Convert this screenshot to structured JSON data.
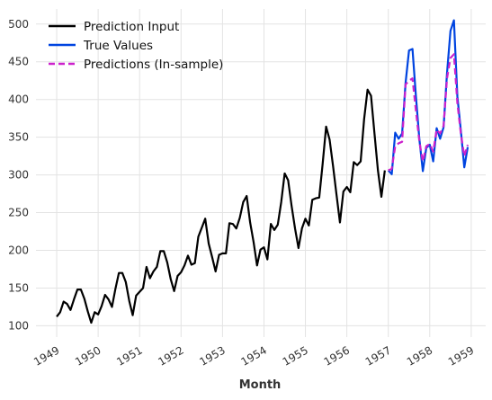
{
  "chart_data": {
    "type": "line",
    "xlabel": "Month",
    "ylabel": "",
    "x_unit": "decimal-year",
    "xlim": [
      1948.5,
      1959.35
    ],
    "ylim": [
      85,
      520
    ],
    "xticks": [
      {
        "value": 1949,
        "label": "1949"
      },
      {
        "value": 1950,
        "label": "1950"
      },
      {
        "value": 1951,
        "label": "1951"
      },
      {
        "value": 1952,
        "label": "1952"
      },
      {
        "value": 1953,
        "label": "1953"
      },
      {
        "value": 1954,
        "label": "1954"
      },
      {
        "value": 1955,
        "label": "1955"
      },
      {
        "value": 1956,
        "label": "1956"
      },
      {
        "value": 1957,
        "label": "1957"
      },
      {
        "value": 1958,
        "label": "1958"
      },
      {
        "value": 1959,
        "label": "1959"
      }
    ],
    "yticks": [
      {
        "value": 100,
        "label": "100"
      },
      {
        "value": 150,
        "label": "150"
      },
      {
        "value": 200,
        "label": "200"
      },
      {
        "value": 250,
        "label": "250"
      },
      {
        "value": 300,
        "label": "300"
      },
      {
        "value": 350,
        "label": "350"
      },
      {
        "value": 400,
        "label": "400"
      },
      {
        "value": 450,
        "label": "450"
      },
      {
        "value": 500,
        "label": "500"
      }
    ],
    "grid": true,
    "legend_position": "top-left",
    "series": [
      {
        "name": "Prediction Input",
        "color": "#000000",
        "dash": "solid",
        "x_start": 1949,
        "values": [
          112,
          118,
          132,
          129,
          121,
          135,
          148,
          148,
          136,
          119,
          104,
          118,
          115,
          126,
          141,
          135,
          125,
          149,
          170,
          170,
          158,
          133,
          114,
          140,
          145,
          150,
          178,
          163,
          172,
          178,
          199,
          199,
          184,
          162,
          146,
          166,
          171,
          180,
          193,
          181,
          183,
          218,
          230,
          242,
          209,
          191,
          172,
          194,
          196,
          196,
          236,
          235,
          229,
          243,
          264,
          272,
          237,
          211,
          180,
          201,
          204,
          188,
          235,
          227,
          234,
          264,
          302,
          293,
          259,
          229,
          203,
          229,
          242,
          233,
          267,
          269,
          270,
          315,
          364,
          347,
          312,
          274,
          237,
          278,
          284,
          277,
          317,
          313,
          318,
          374,
          413,
          405,
          355,
          306,
          271,
          306
        ]
      },
      {
        "name": "True Values",
        "color": "#0044e0",
        "dash": "solid",
        "x_start": 1957,
        "values": [
          306,
          301,
          356,
          348,
          355,
          422,
          465,
          467,
          404,
          347,
          305,
          336,
          340,
          318,
          362,
          348,
          363,
          435,
          491,
          505,
          404,
          359,
          310,
          337
        ]
      },
      {
        "name": "Predictions (In-sample)",
        "color": "#cc22cc",
        "dash": "dashed",
        "x_start": 1957,
        "values": [
          306,
          308,
          338,
          342,
          344,
          420,
          425,
          428,
          385,
          344,
          318,
          338,
          341,
          331,
          360,
          355,
          365,
          428,
          455,
          460,
          395,
          355,
          325,
          340
        ]
      }
    ]
  }
}
